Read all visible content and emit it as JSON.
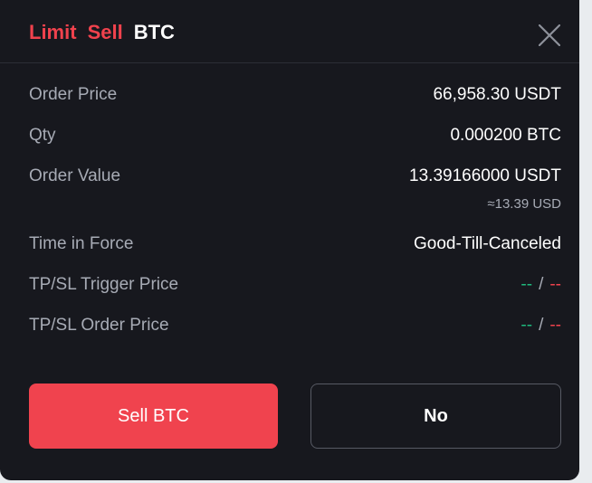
{
  "header": {
    "order_type": "Limit",
    "side": "Sell",
    "symbol": "BTC"
  },
  "rows": [
    {
      "label": "Order Price",
      "value": "66,958.30 USDT"
    },
    {
      "label": "Qty",
      "value": "0.000200 BTC"
    },
    {
      "label": "Order Value",
      "value": "13.39166000 USDT",
      "sub_value": "≈13.39 USD"
    },
    {
      "label": "Time in Force",
      "value": "Good-Till-Canceled"
    },
    {
      "label": "TP/SL Trigger Price",
      "tp": "--",
      "separator": "/",
      "sl": "--"
    },
    {
      "label": "TP/SL Order Price",
      "tp": "--",
      "separator": "/",
      "sl": "--"
    }
  ],
  "buttons": {
    "confirm_label": "Sell BTC",
    "cancel_label": "No"
  },
  "colors": {
    "accent_red": "#f0424d",
    "green": "#1fba7e",
    "background": "#17181e"
  },
  "icons": {
    "close": "close-icon"
  }
}
